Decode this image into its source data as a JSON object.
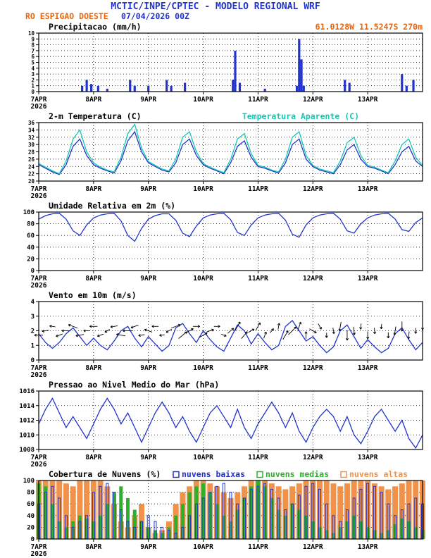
{
  "header": {
    "title": "MCTIC/INPE/CPTEC - MODELO REGIONAL WRF",
    "station": "RO ESPIGAO DOESTE",
    "run": "07/04/2026 00Z",
    "location": "61.0128W 11.5247S 270m"
  },
  "colors": {
    "blue": "#2233cc",
    "cyan": "#14c8b4",
    "orange": "#e8650f",
    "green": "#2eb02e",
    "cloud_orange": "#f0924a"
  },
  "x_axis": {
    "hours_total": 168,
    "step_hours": 3,
    "year_label": "2026",
    "ticks": [
      {
        "h": 0,
        "label": "7APR",
        "year": "2026"
      },
      {
        "h": 24,
        "label": "8APR"
      },
      {
        "h": 48,
        "label": "9APR"
      },
      {
        "h": 72,
        "label": "10APR"
      },
      {
        "h": 96,
        "label": "11APR"
      },
      {
        "h": 120,
        "label": "12APR"
      },
      {
        "h": 144,
        "label": "13APR"
      }
    ]
  },
  "chart_data": [
    {
      "type": "bar",
      "title": "Precipitacao (mm/h)",
      "title_right": "61.0128W 11.5247S 270m",
      "ylim": [
        0,
        10
      ],
      "yticks": [
        0,
        1,
        2,
        3,
        4,
        5,
        6,
        7,
        8,
        9,
        10
      ],
      "bars": [
        [
          19,
          1.0
        ],
        [
          21,
          2.0
        ],
        [
          23,
          1.3
        ],
        [
          26,
          1.0
        ],
        [
          30,
          0.5
        ],
        [
          40,
          2.0
        ],
        [
          42,
          1.0
        ],
        [
          48,
          1.0
        ],
        [
          56,
          2.0
        ],
        [
          58,
          1.0
        ],
        [
          64,
          1.5
        ],
        [
          85,
          2.0
        ],
        [
          86,
          7.0
        ],
        [
          88,
          1.5
        ],
        [
          99,
          0.5
        ],
        [
          113,
          1.0
        ],
        [
          114,
          9.0
        ],
        [
          115,
          5.5
        ],
        [
          116,
          1.0
        ],
        [
          134,
          2.0
        ],
        [
          136,
          1.5
        ],
        [
          159,
          3.0
        ],
        [
          161,
          1.0
        ],
        [
          164,
          2.0
        ]
      ]
    },
    {
      "type": "line",
      "title": "2-m Temperatura (C)",
      "ylim": [
        20,
        36
      ],
      "yticks": [
        20,
        22,
        24,
        26,
        28,
        30,
        32,
        34,
        36
      ],
      "series": [
        {
          "name": "2-m Temperatura (C)",
          "color_key": "blue",
          "values": [
            24.5,
            23.5,
            22.5,
            21.8,
            24.5,
            29.5,
            31.5,
            27,
            24.5,
            23.5,
            22.8,
            22.2,
            25.5,
            31,
            33.5,
            28,
            25,
            24,
            23,
            22.5,
            25,
            30,
            31.5,
            27,
            24.5,
            23.5,
            22.8,
            22,
            25,
            29.5,
            31,
            26.5,
            24,
            23.5,
            22.8,
            22.2,
            25,
            30,
            31.5,
            26,
            24,
            23,
            22.5,
            22,
            24.5,
            28.5,
            30,
            26,
            24,
            23.5,
            22.8,
            22,
            24.5,
            28,
            29.5,
            25.5,
            24
          ]
        },
        {
          "name": "Temperatura Aparente (C)",
          "color_key": "cyan",
          "label_right": true,
          "values": [
            24.8,
            23.8,
            22.8,
            22,
            25.5,
            31.5,
            34,
            28,
            25,
            23.8,
            23,
            22.5,
            26.5,
            33,
            35.5,
            29,
            25.3,
            24.3,
            23.3,
            22.8,
            26,
            32,
            33.5,
            28,
            24.8,
            23.8,
            23,
            22.3,
            26,
            31.5,
            33,
            27.5,
            24.3,
            23.8,
            23,
            22.5,
            26,
            32,
            33.5,
            27,
            24.3,
            23.3,
            22.8,
            22.3,
            25.5,
            30.5,
            32,
            27,
            24.3,
            23.8,
            23,
            22.3,
            25.5,
            30,
            31.5,
            26.5,
            24.3
          ]
        }
      ]
    },
    {
      "type": "line",
      "title": "Umidade Relativa em 2m (%)",
      "ylim": [
        0,
        100
      ],
      "yticks": [
        0,
        20,
        40,
        60,
        80,
        100
      ],
      "series": [
        {
          "name": "Umidade Relativa",
          "color_key": "blue",
          "values": [
            88,
            94,
            97,
            98,
            88,
            68,
            60,
            78,
            90,
            95,
            97,
            98,
            85,
            60,
            50,
            72,
            88,
            94,
            97,
            97,
            86,
            64,
            58,
            76,
            90,
            95,
            97,
            98,
            87,
            65,
            60,
            78,
            90,
            95,
            97,
            98,
            86,
            62,
            57,
            78,
            90,
            95,
            97,
            98,
            88,
            68,
            64,
            80,
            90,
            95,
            97,
            98,
            88,
            70,
            67,
            82,
            90
          ]
        }
      ]
    },
    {
      "type": "wind",
      "title": "Vento em 10m (m/s)",
      "ylim": [
        0,
        4
      ],
      "yticks": [
        0,
        1,
        2,
        3,
        4
      ],
      "values": [
        1.8,
        1.2,
        0.8,
        1.2,
        1.8,
        2.2,
        1.6,
        1.0,
        1.5,
        1.0,
        0.7,
        1.3,
        2.0,
        2.3,
        1.5,
        0.9,
        1.6,
        1.1,
        0.6,
        1.0,
        2.2,
        2.5,
        1.8,
        1.2,
        2.0,
        1.4,
        0.9,
        0.6,
        1.5,
        2.4,
        2.0,
        1.1,
        1.8,
        1.2,
        0.7,
        1.0,
        2.3,
        2.7,
        2.0,
        1.3,
        1.6,
        1.0,
        0.5,
        0.9,
        2.0,
        2.4,
        1.6,
        0.8,
        1.4,
        0.9,
        0.5,
        0.8,
        1.8,
        2.2,
        1.4,
        0.7,
        1.2
      ],
      "directions_deg": [
        180,
        170,
        190,
        160,
        180,
        200,
        170,
        180,
        180,
        160,
        150,
        170,
        190,
        180,
        160,
        170,
        200,
        180,
        170,
        150,
        -20,
        -40,
        -30,
        0,
        -30,
        -20,
        0,
        20,
        -40,
        -60,
        -50,
        -30,
        -60,
        -70,
        -50,
        -80,
        -60,
        -45,
        -70,
        -90,
        30,
        60,
        90,
        80,
        100,
        90,
        85,
        95,
        90,
        85,
        95,
        90,
        100,
        90,
        95,
        90,
        90
      ]
    },
    {
      "type": "line",
      "title": "Pressao ao Nivel Medio do Mar (hPa)",
      "ylim": [
        1008,
        1016
      ],
      "yticks": [
        1008,
        1010,
        1012,
        1014,
        1016
      ],
      "series": [
        {
          "name": "Pressao",
          "color_key": "blue",
          "values": [
            1011.5,
            1013.5,
            1015,
            1013,
            1011,
            1012.5,
            1011,
            1009.5,
            1011.5,
            1013.5,
            1015,
            1013.5,
            1011.5,
            1013,
            1011,
            1009,
            1011,
            1013,
            1014.5,
            1013,
            1011,
            1012.5,
            1010.5,
            1009,
            1011,
            1013,
            1014,
            1012.5,
            1011,
            1013.5,
            1011,
            1009.5,
            1011.5,
            1013,
            1014.5,
            1013,
            1011,
            1013,
            1010.5,
            1009,
            1011,
            1012.5,
            1013.5,
            1012.5,
            1010.5,
            1012.5,
            1010,
            1008.8,
            1010.5,
            1012.5,
            1013.5,
            1012,
            1010.5,
            1012,
            1009.5,
            1008.2,
            1010
          ]
        }
      ]
    },
    {
      "type": "clouds",
      "title": "Cobertura de Nuvens (%)",
      "ylim": [
        0,
        100
      ],
      "yticks": [
        0,
        20,
        40,
        60,
        80,
        100
      ],
      "legend": [
        {
          "label": "nuvens baixas",
          "color_key": "blue"
        },
        {
          "label": "nuvens medias",
          "color_key": "green"
        },
        {
          "label": "nuvens altas",
          "color_key": "cloud_orange"
        }
      ],
      "series": {
        "altas": [
          100,
          100,
          100,
          100,
          95,
          90,
          100,
          100,
          100,
          100,
          90,
          60,
          30,
          20,
          40,
          60,
          20,
          10,
          15,
          30,
          60,
          80,
          90,
          100,
          100,
          95,
          90,
          80,
          70,
          80,
          90,
          100,
          100,
          100,
          95,
          90,
          85,
          90,
          95,
          100,
          100,
          100,
          100,
          95,
          90,
          95,
          100,
          100,
          100,
          95,
          90,
          85,
          90,
          95,
          100,
          100,
          100
        ],
        "medias": [
          95,
          90,
          60,
          30,
          20,
          30,
          40,
          35,
          30,
          40,
          60,
          80,
          90,
          70,
          50,
          30,
          20,
          15,
          10,
          20,
          40,
          60,
          80,
          90,
          95,
          80,
          60,
          40,
          30,
          50,
          70,
          90,
          100,
          90,
          70,
          50,
          40,
          60,
          50,
          40,
          30,
          20,
          15,
          10,
          20,
          30,
          40,
          30,
          20,
          15,
          10,
          15,
          25,
          35,
          30,
          20,
          15
        ],
        "baixas": [
          60,
          80,
          90,
          70,
          40,
          20,
          30,
          40,
          80,
          90,
          95,
          80,
          50,
          30,
          20,
          30,
          40,
          30,
          20,
          15,
          10,
          20,
          40,
          60,
          70,
          80,
          90,
          95,
          80,
          60,
          70,
          85,
          90,
          95,
          85,
          70,
          50,
          60,
          75,
          90,
          95,
          85,
          60,
          40,
          30,
          50,
          70,
          85,
          95,
          90,
          80,
          60,
          40,
          50,
          60,
          70,
          60
        ]
      }
    }
  ]
}
